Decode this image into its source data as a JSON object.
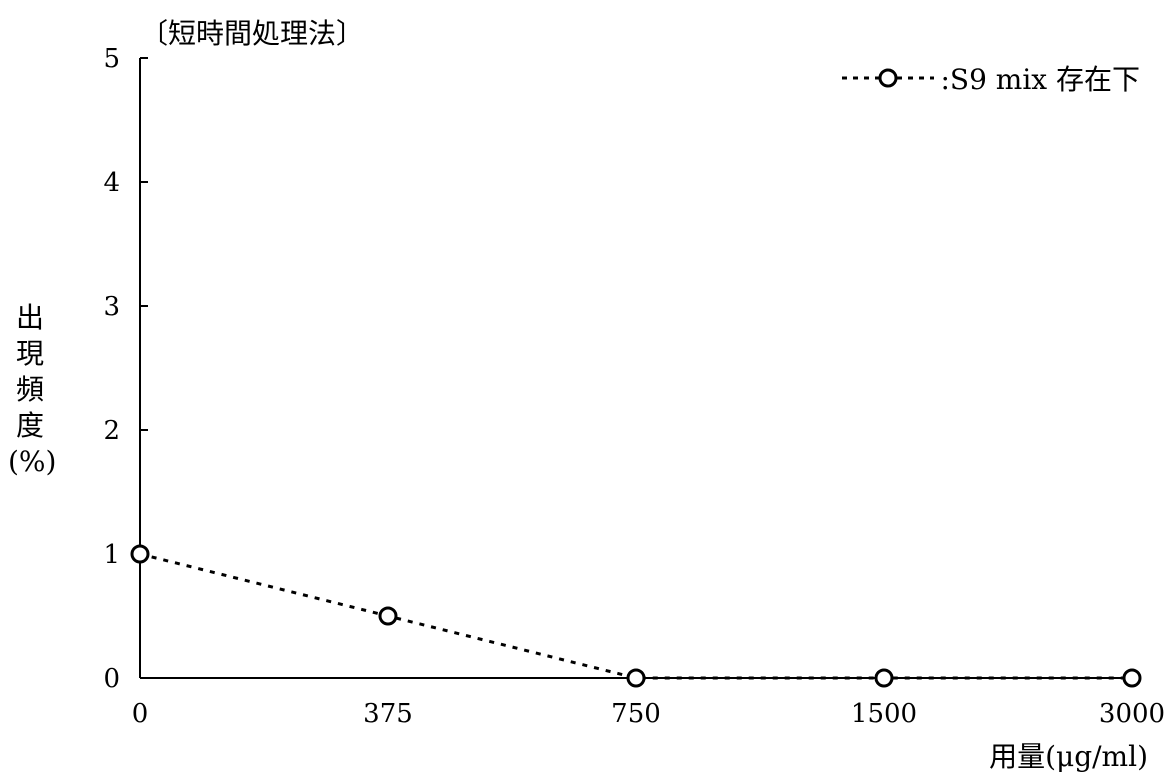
{
  "chart_data": {
    "type": "line",
    "title": "〔短時間処理法〕",
    "xlabel": "用量(μg/ml)",
    "ylabel": [
      "出",
      "現",
      "頻",
      "度",
      "(%)"
    ],
    "categories": [
      "0",
      "375",
      "750",
      "1500",
      "3000"
    ],
    "yticks": [
      "0",
      "1",
      "2",
      "3",
      "4",
      "5"
    ],
    "ylim": [
      0,
      5
    ],
    "grid": false,
    "legend_position": "top-right",
    "series": [
      {
        "name": "S9 mix 存在下",
        "legend_label": "- - ○ - - :S9 mix 存在下",
        "values": [
          1.0,
          0.5,
          0.0,
          0.0,
          0.0
        ],
        "marker": "open-circle",
        "line": "dotted"
      }
    ]
  }
}
